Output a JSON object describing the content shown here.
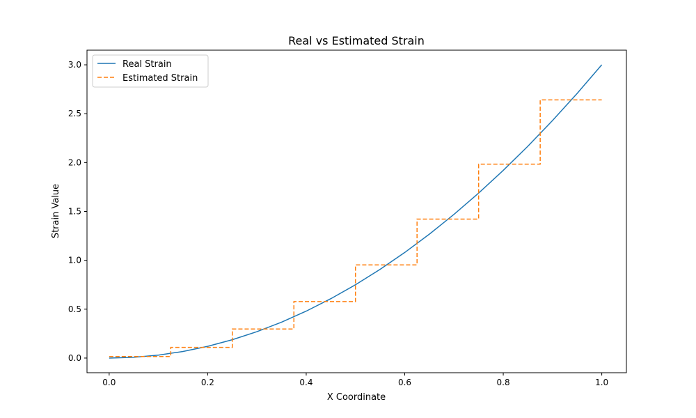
{
  "chart_data": {
    "type": "line",
    "title": "Real vs Estimated Strain",
    "xlabel": "X Coordinate",
    "ylabel": "Strain Value",
    "xlim": [
      -0.045,
      1.05
    ],
    "ylim": [
      -0.15,
      3.15
    ],
    "x_ticks": [
      0.0,
      0.2,
      0.4,
      0.6,
      0.8,
      1.0
    ],
    "x_tick_labels": [
      "0.0",
      "0.2",
      "0.4",
      "0.6",
      "0.8",
      "1.0"
    ],
    "y_ticks": [
      0.0,
      0.5,
      1.0,
      1.5,
      2.0,
      2.5,
      3.0
    ],
    "y_tick_labels": [
      "0.0",
      "0.5",
      "1.0",
      "1.5",
      "2.0",
      "2.5",
      "3.0"
    ],
    "grid": false,
    "legend_position": "top-left",
    "series": [
      {
        "name": "Real Strain",
        "style": "solid",
        "color": "#1f77b4",
        "x": [
          0.0,
          0.05,
          0.1,
          0.15,
          0.2,
          0.25,
          0.3,
          0.35,
          0.4,
          0.45,
          0.5,
          0.55,
          0.6,
          0.65,
          0.7,
          0.75,
          0.8,
          0.85,
          0.9,
          0.95,
          1.0
        ],
        "y": [
          0.0,
          0.0075,
          0.03,
          0.0675,
          0.12,
          0.1875,
          0.27,
          0.3675,
          0.48,
          0.6075,
          0.75,
          0.9075,
          1.08,
          1.2675,
          1.47,
          1.6875,
          1.92,
          2.1675,
          2.43,
          2.7075,
          3.0
        ]
      },
      {
        "name": "Estimated Strain",
        "style": "dashed",
        "color": "#ff7f0e",
        "step_edges": [
          0.0,
          0.125,
          0.25,
          0.375,
          0.5,
          0.625,
          0.75,
          0.875,
          1.0
        ],
        "step_values": [
          0.016,
          0.109,
          0.297,
          0.578,
          0.953,
          1.422,
          1.984,
          2.641
        ]
      }
    ]
  }
}
